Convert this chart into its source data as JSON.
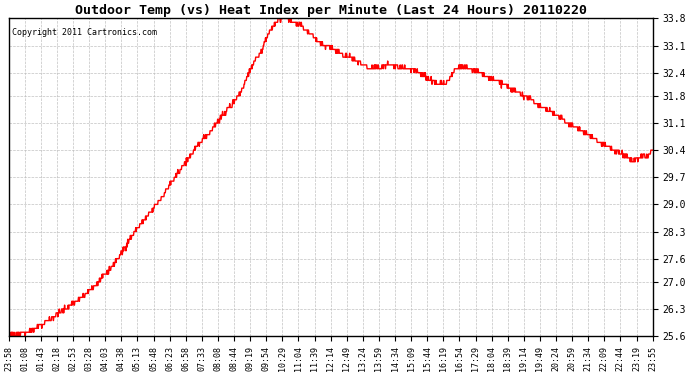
{
  "title": "Outdoor Temp (vs) Heat Index per Minute (Last 24 Hours) 20110220",
  "copyright": "Copyright 2011 Cartronics.com",
  "background_color": "#ffffff",
  "plot_bg_color": "#ffffff",
  "grid_color": "#bbbbbb",
  "line_color": "#ff0000",
  "line_width": 1.0,
  "ylim": [
    25.6,
    33.8
  ],
  "yticks": [
    25.6,
    26.3,
    27.0,
    27.6,
    28.3,
    29.0,
    29.7,
    30.4,
    31.1,
    31.8,
    32.4,
    33.1,
    33.8
  ],
  "xtick_labels": [
    "23:58",
    "01:08",
    "01:43",
    "02:18",
    "02:53",
    "03:28",
    "04:03",
    "04:38",
    "05:13",
    "05:48",
    "06:23",
    "06:58",
    "07:33",
    "08:08",
    "08:44",
    "09:19",
    "09:54",
    "10:29",
    "11:04",
    "11:39",
    "12:14",
    "12:49",
    "13:24",
    "13:59",
    "14:34",
    "15:09",
    "15:44",
    "16:19",
    "16:54",
    "17:29",
    "18:04",
    "18:39",
    "19:14",
    "19:49",
    "20:24",
    "20:59",
    "21:34",
    "22:09",
    "22:44",
    "23:19",
    "23:55"
  ],
  "key_times": [
    0.0,
    0.01,
    0.018,
    0.025,
    0.033,
    0.042,
    0.05,
    0.06,
    0.07,
    0.083,
    0.095,
    0.108,
    0.12,
    0.133,
    0.148,
    0.162,
    0.175,
    0.188,
    0.2,
    0.213,
    0.225,
    0.238,
    0.25,
    0.263,
    0.275,
    0.29,
    0.305,
    0.318,
    0.33,
    0.345,
    0.36,
    0.37,
    0.38,
    0.392,
    0.4,
    0.41,
    0.42,
    0.43,
    0.445,
    0.458,
    0.47,
    0.48,
    0.49,
    0.5,
    0.51,
    0.52,
    0.53,
    0.54,
    0.55,
    0.56,
    0.575,
    0.59,
    0.605,
    0.618,
    0.63,
    0.643,
    0.655,
    0.668,
    0.68,
    0.693,
    0.705,
    0.718,
    0.73,
    0.743,
    0.755,
    0.768,
    0.778,
    0.79,
    0.8,
    0.812,
    0.82,
    0.83,
    0.84,
    0.85,
    0.86,
    0.87,
    0.88,
    0.89,
    0.9,
    0.91,
    0.92,
    0.93,
    0.942,
    0.953,
    0.962,
    0.97,
    0.978,
    0.985,
    0.992,
    1.0
  ],
  "key_values": [
    25.62,
    25.65,
    25.67,
    25.7,
    25.73,
    25.8,
    25.9,
    26.0,
    26.1,
    26.25,
    26.4,
    26.55,
    26.7,
    26.9,
    27.15,
    27.45,
    27.75,
    28.1,
    28.4,
    28.65,
    28.9,
    29.2,
    29.5,
    29.8,
    30.1,
    30.45,
    30.75,
    31.0,
    31.25,
    31.55,
    31.9,
    32.3,
    32.65,
    32.95,
    33.3,
    33.6,
    33.78,
    33.8,
    33.7,
    33.55,
    33.4,
    33.2,
    33.1,
    33.05,
    32.95,
    32.85,
    32.8,
    32.7,
    32.6,
    32.5,
    32.55,
    32.6,
    32.55,
    32.5,
    32.45,
    32.35,
    32.2,
    32.1,
    32.15,
    32.5,
    32.55,
    32.5,
    32.4,
    32.3,
    32.2,
    32.1,
    32.0,
    31.9,
    31.8,
    31.7,
    31.6,
    31.5,
    31.4,
    31.3,
    31.2,
    31.1,
    31.0,
    30.9,
    30.8,
    30.7,
    30.6,
    30.5,
    30.4,
    30.3,
    30.2,
    30.1,
    30.2,
    30.25,
    30.2,
    30.45
  ]
}
